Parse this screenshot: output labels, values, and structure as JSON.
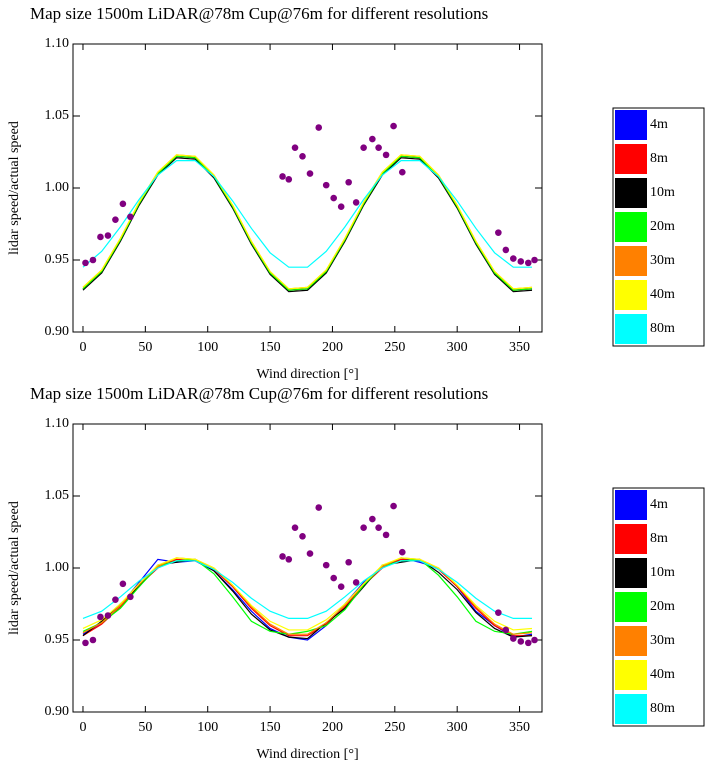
{
  "chart_data": [
    {
      "type": "line",
      "title": "Map size 1500m LiDAR@78m Cup@76m for different resolutions",
      "x_label": "Wind direction [°]",
      "y_label": "lidar speed/actual speed",
      "xlim": [
        -8,
        368
      ],
      "ylim": [
        0.9,
        1.1
      ],
      "xticks": [
        0,
        50,
        100,
        150,
        200,
        250,
        300,
        350
      ],
      "yticks": [
        {
          "value": 0.9,
          "label": "0.90"
        },
        {
          "value": 0.95,
          "label": "0.95"
        },
        {
          "value": 1.0,
          "label": "1.00"
        },
        {
          "value": 1.05,
          "label": "1.05"
        },
        {
          "value": 1.1,
          "label": "1.10"
        }
      ],
      "legend": "right",
      "x": [
        0,
        15,
        30,
        45,
        60,
        75,
        90,
        105,
        120,
        135,
        150,
        165,
        180,
        195,
        210,
        225,
        240,
        255,
        270,
        285,
        300,
        315,
        330,
        345,
        360
      ],
      "series": [
        {
          "name": "4m",
          "color": "#0000ff",
          "values": [
            0.93,
            0.942,
            0.964,
            0.989,
            1.01,
            1.022,
            1.021,
            1.008,
            0.987,
            0.962,
            0.941,
            0.929,
            0.93,
            0.942,
            0.964,
            0.989,
            1.01,
            1.022,
            1.021,
            1.008,
            0.987,
            0.962,
            0.941,
            0.929,
            0.93
          ]
        },
        {
          "name": "8m",
          "color": "#ff0000",
          "values": [
            0.93,
            0.942,
            0.964,
            0.989,
            1.01,
            1.022,
            1.021,
            1.008,
            0.987,
            0.962,
            0.941,
            0.929,
            0.93,
            0.942,
            0.964,
            0.989,
            1.01,
            1.022,
            1.021,
            1.008,
            0.987,
            0.962,
            0.941,
            0.929,
            0.93
          ]
        },
        {
          "name": "10m",
          "color": "#000000",
          "values": [
            0.929,
            0.941,
            0.963,
            0.988,
            1.009,
            1.021,
            1.02,
            1.007,
            0.986,
            0.961,
            0.94,
            0.928,
            0.929,
            0.941,
            0.963,
            0.988,
            1.009,
            1.021,
            1.02,
            1.007,
            0.986,
            0.961,
            0.94,
            0.928,
            0.929
          ]
        },
        {
          "name": "20m",
          "color": "#00ff00",
          "values": [
            0.93,
            0.942,
            0.964,
            0.989,
            1.01,
            1.022,
            1.021,
            1.008,
            0.987,
            0.962,
            0.941,
            0.929,
            0.93,
            0.942,
            0.964,
            0.989,
            1.01,
            1.022,
            1.021,
            1.008,
            0.987,
            0.962,
            0.941,
            0.929,
            0.93
          ]
        },
        {
          "name": "30m",
          "color": "#ff8000",
          "values": [
            0.931,
            0.943,
            0.965,
            0.99,
            1.011,
            1.023,
            1.022,
            1.009,
            0.988,
            0.963,
            0.942,
            0.93,
            0.931,
            0.943,
            0.965,
            0.99,
            1.011,
            1.023,
            1.022,
            1.009,
            0.988,
            0.963,
            0.942,
            0.93,
            0.931
          ]
        },
        {
          "name": "40m",
          "color": "#ffff00",
          "values": [
            0.931,
            0.943,
            0.965,
            0.99,
            1.011,
            1.023,
            1.022,
            1.009,
            0.988,
            0.963,
            0.942,
            0.93,
            0.931,
            0.943,
            0.965,
            0.99,
            1.011,
            1.023,
            1.022,
            1.009,
            0.988,
            0.963,
            0.942,
            0.93,
            0.931
          ]
        },
        {
          "name": "80m",
          "color": "#00ffff",
          "values": [
            0.945,
            0.956,
            0.973,
            0.992,
            1.009,
            1.019,
            1.019,
            1.008,
            0.991,
            0.972,
            0.955,
            0.945,
            0.945,
            0.956,
            0.973,
            0.992,
            1.009,
            1.019,
            1.019,
            1.008,
            0.991,
            0.972,
            0.955,
            0.945,
            0.945
          ]
        }
      ],
      "points": {
        "color": "#800080",
        "x": [
          2,
          8,
          14,
          20,
          26,
          32,
          38,
          160,
          165,
          170,
          176,
          182,
          189,
          195,
          201,
          207,
          213,
          219,
          225,
          232,
          237,
          243,
          249,
          256,
          333,
          339,
          345,
          351,
          357,
          362
        ],
        "y": [
          0.948,
          0.95,
          0.966,
          0.967,
          0.978,
          0.989,
          0.98,
          1.008,
          1.006,
          1.028,
          1.022,
          1.01,
          1.042,
          1.002,
          0.993,
          0.987,
          1.004,
          0.99,
          1.028,
          1.034,
          1.028,
          1.023,
          1.043,
          1.011,
          0.969,
          0.957,
          0.951,
          0.949,
          0.948,
          0.95
        ]
      }
    },
    {
      "type": "line",
      "title": "Map size 1500m LiDAR@78m Cup@76m for different resolutions",
      "x_label": "Wind direction [°]",
      "y_label": "lidar speed/actual speed",
      "xlim": [
        -8,
        368
      ],
      "ylim": [
        0.9,
        1.1
      ],
      "xticks": [
        0,
        50,
        100,
        150,
        200,
        250,
        300,
        350
      ],
      "yticks": [
        {
          "value": 0.9,
          "label": "0.90"
        },
        {
          "value": 0.95,
          "label": "0.95"
        },
        {
          "value": 1.0,
          "label": "1.00"
        },
        {
          "value": 1.05,
          "label": "1.05"
        },
        {
          "value": 1.1,
          "label": "1.10"
        }
      ],
      "legend": "right",
      "x": [
        0,
        15,
        30,
        45,
        60,
        75,
        90,
        105,
        120,
        135,
        150,
        165,
        180,
        195,
        210,
        225,
        240,
        255,
        270,
        285,
        300,
        315,
        330,
        345,
        360
      ],
      "series": [
        {
          "name": "4m",
          "color": "#0000ff",
          "values": [
            0.954,
            0.962,
            0.974,
            0.99,
            1.006,
            1.004,
            1.005,
            0.998,
            0.985,
            0.97,
            0.958,
            0.952,
            0.95,
            0.96,
            0.975,
            0.99,
            1.0,
            1.007,
            1.004,
            1.0,
            0.987,
            0.97,
            0.96,
            0.952,
            0.954
          ]
        },
        {
          "name": "8m",
          "color": "#ff0000",
          "values": [
            0.953,
            0.961,
            0.973,
            0.988,
            1.0,
            1.006,
            1.005,
            0.999,
            0.987,
            0.972,
            0.96,
            0.953,
            0.953,
            0.961,
            0.973,
            0.988,
            1.0,
            1.006,
            1.005,
            0.999,
            0.987,
            0.972,
            0.96,
            0.953,
            0.953
          ]
        },
        {
          "name": "10m",
          "color": "#000000",
          "values": [
            0.953,
            0.963,
            0.975,
            0.987,
            1.002,
            1.004,
            1.006,
            0.998,
            0.984,
            0.968,
            0.957,
            0.952,
            0.951,
            0.962,
            0.972,
            0.987,
            1.002,
            1.004,
            1.006,
            0.997,
            0.985,
            0.969,
            0.958,
            0.952,
            0.953
          ]
        },
        {
          "name": "20m",
          "color": "#00ff00",
          "values": [
            0.956,
            0.962,
            0.972,
            0.987,
            1.001,
            1.005,
            1.006,
            0.996,
            0.98,
            0.963,
            0.956,
            0.954,
            0.956,
            0.96,
            0.971,
            0.988,
            1.001,
            1.005,
            1.006,
            0.995,
            0.98,
            0.963,
            0.956,
            0.954,
            0.956
          ]
        },
        {
          "name": "30m",
          "color": "#ff8000",
          "values": [
            0.955,
            0.962,
            0.974,
            0.989,
            1.001,
            1.007,
            1.006,
            1.0,
            0.988,
            0.973,
            0.961,
            0.954,
            0.954,
            0.962,
            0.974,
            0.989,
            1.001,
            1.007,
            1.006,
            1.0,
            0.988,
            0.973,
            0.961,
            0.954,
            0.955
          ]
        },
        {
          "name": "40m",
          "color": "#ffff00",
          "values": [
            0.958,
            0.964,
            0.975,
            0.989,
            1.002,
            1.007,
            1.006,
            1.0,
            0.988,
            0.974,
            0.963,
            0.957,
            0.957,
            0.964,
            0.975,
            0.989,
            1.002,
            1.007,
            1.006,
            1.0,
            0.988,
            0.974,
            0.963,
            0.957,
            0.958
          ]
        },
        {
          "name": "80m",
          "color": "#00ffff",
          "values": [
            0.965,
            0.97,
            0.98,
            0.991,
            1.0,
            1.005,
            1.005,
            0.999,
            0.99,
            0.979,
            0.97,
            0.965,
            0.965,
            0.97,
            0.98,
            0.991,
            1.0,
            1.005,
            1.005,
            0.999,
            0.99,
            0.979,
            0.97,
            0.965,
            0.965
          ]
        }
      ],
      "points": {
        "color": "#800080",
        "x": [
          2,
          8,
          14,
          20,
          26,
          32,
          38,
          160,
          165,
          170,
          176,
          182,
          189,
          195,
          201,
          207,
          213,
          219,
          225,
          232,
          237,
          243,
          249,
          256,
          333,
          339,
          345,
          351,
          357,
          362
        ],
        "y": [
          0.948,
          0.95,
          0.966,
          0.967,
          0.978,
          0.989,
          0.98,
          1.008,
          1.006,
          1.028,
          1.022,
          1.01,
          1.042,
          1.002,
          0.993,
          0.987,
          1.004,
          0.99,
          1.028,
          1.034,
          1.028,
          1.023,
          1.043,
          1.011,
          0.969,
          0.957,
          0.951,
          0.949,
          0.948,
          0.95
        ]
      }
    }
  ]
}
